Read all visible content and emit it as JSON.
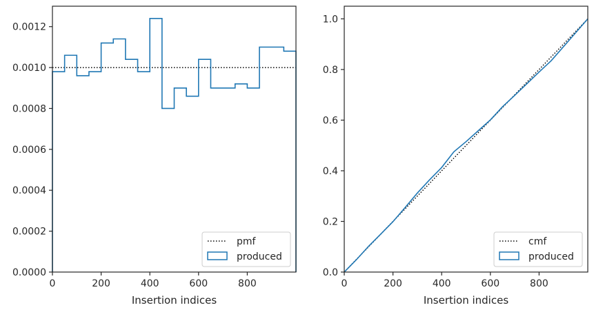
{
  "chart_data": [
    {
      "type": "histogram",
      "title": "",
      "xlabel": "Insertion indices",
      "ylabel": "",
      "xlim": [
        0,
        1000
      ],
      "ylim": [
        0,
        0.0013
      ],
      "xticks": [
        0,
        200,
        400,
        600,
        800
      ],
      "xtick_labels": [
        "0",
        "200",
        "400",
        "600",
        "800"
      ],
      "yticks": [
        0,
        0.0002,
        0.0004,
        0.0006,
        0.0008,
        0.001,
        0.0012
      ],
      "ytick_labels": [
        "0.0000",
        "0.0002",
        "0.0004",
        "0.0006",
        "0.0008",
        "0.0010",
        "0.0012"
      ],
      "grid": false,
      "legend_position": "bottom-right",
      "bin_edges": [
        0,
        50,
        100,
        150,
        200,
        250,
        300,
        350,
        400,
        450,
        500,
        550,
        600,
        650,
        700,
        750,
        800,
        850,
        900,
        950,
        1000
      ],
      "series": [
        {
          "name": "produced",
          "style": "step",
          "color": "#1f77b4",
          "values": [
            0.00098,
            0.00106,
            0.00096,
            0.00098,
            0.00112,
            0.00114,
            0.00104,
            0.00098,
            0.00124,
            0.0008,
            0.0009,
            0.00086,
            0.00104,
            0.0009,
            0.0009,
            0.00092,
            0.0009,
            0.0011,
            0.0011,
            0.00108
          ]
        },
        {
          "name": "pmf",
          "style": "dotted",
          "color": "#000000",
          "x": [
            0,
            1000
          ],
          "y": [
            0.001,
            0.001
          ]
        }
      ]
    },
    {
      "type": "line",
      "title": "",
      "xlabel": "Insertion indices",
      "ylabel": "",
      "xlim": [
        0,
        1000
      ],
      "ylim": [
        0,
        1.05
      ],
      "xticks": [
        0,
        200,
        400,
        600,
        800
      ],
      "xtick_labels": [
        "0",
        "200",
        "400",
        "600",
        "800"
      ],
      "yticks": [
        0,
        0.2,
        0.4,
        0.6,
        0.8,
        1.0
      ],
      "ytick_labels": [
        "0.0",
        "0.2",
        "0.4",
        "0.6",
        "0.8",
        "1.0"
      ],
      "grid": false,
      "legend_position": "bottom-right",
      "series": [
        {
          "name": "produced",
          "style": "step",
          "color": "#1f77b4",
          "x": [
            0,
            50,
            100,
            150,
            200,
            250,
            300,
            350,
            400,
            450,
            500,
            550,
            600,
            650,
            700,
            750,
            800,
            850,
            900,
            950,
            1000
          ],
          "y": [
            0,
            0.049,
            0.102,
            0.15,
            0.199,
            0.255,
            0.312,
            0.364,
            0.413,
            0.475,
            0.515,
            0.558,
            0.601,
            0.653,
            0.698,
            0.744,
            0.79,
            0.835,
            0.89,
            0.945,
            1.0
          ]
        },
        {
          "name": "cmf",
          "style": "dotted",
          "color": "#000000",
          "x": [
            0,
            1000
          ],
          "y": [
            0,
            1.0
          ]
        }
      ]
    }
  ],
  "colors": {
    "produced": "#1f77b4",
    "reference": "#000000",
    "axes": "#262626"
  }
}
